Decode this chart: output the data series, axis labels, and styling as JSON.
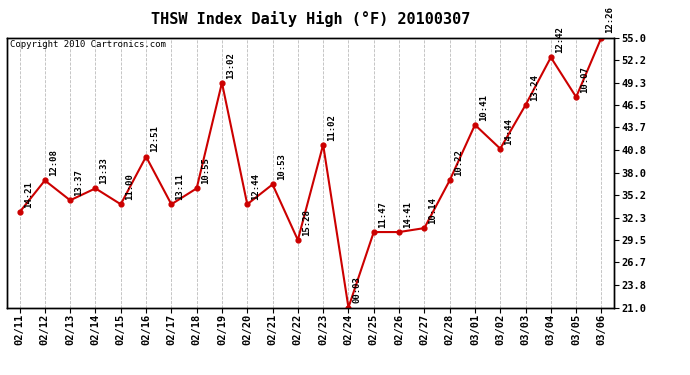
{
  "title": "THSW Index Daily High (°F) 20100307",
  "copyright": "Copyright 2010 Cartronics.com",
  "dates": [
    "02/11",
    "02/12",
    "02/13",
    "02/14",
    "02/15",
    "02/16",
    "02/17",
    "02/18",
    "02/19",
    "02/20",
    "02/21",
    "02/22",
    "02/23",
    "02/24",
    "02/25",
    "02/26",
    "02/27",
    "02/28",
    "03/01",
    "03/02",
    "03/03",
    "03/04",
    "03/05",
    "03/06"
  ],
  "values": [
    33.0,
    37.0,
    34.5,
    36.0,
    34.0,
    40.0,
    34.0,
    36.0,
    49.3,
    34.0,
    36.5,
    29.5,
    41.5,
    21.0,
    30.5,
    30.5,
    31.0,
    37.0,
    44.0,
    41.0,
    46.5,
    52.5,
    47.5,
    55.0
  ],
  "labels": [
    "14:21",
    "12:08",
    "13:37",
    "13:33",
    "11:00",
    "12:51",
    "13:11",
    "10:55",
    "13:02",
    "12:44",
    "10:53",
    "15:28",
    "11:02",
    "00:03",
    "11:47",
    "14:41",
    "10:14",
    "10:22",
    "10:41",
    "14:44",
    "13:24",
    "12:42",
    "10:07",
    "12:26"
  ],
  "line_color": "#cc0000",
  "marker_color": "#cc0000",
  "background_color": "#ffffff",
  "grid_color": "#bbbbbb",
  "ylim": [
    21.0,
    55.0
  ],
  "yticks": [
    21.0,
    23.8,
    26.7,
    29.5,
    32.3,
    35.2,
    38.0,
    40.8,
    43.7,
    46.5,
    49.3,
    52.2,
    55.0
  ],
  "title_fontsize": 11,
  "label_fontsize": 6.5,
  "tick_fontsize": 7.5,
  "copyright_fontsize": 6.5
}
